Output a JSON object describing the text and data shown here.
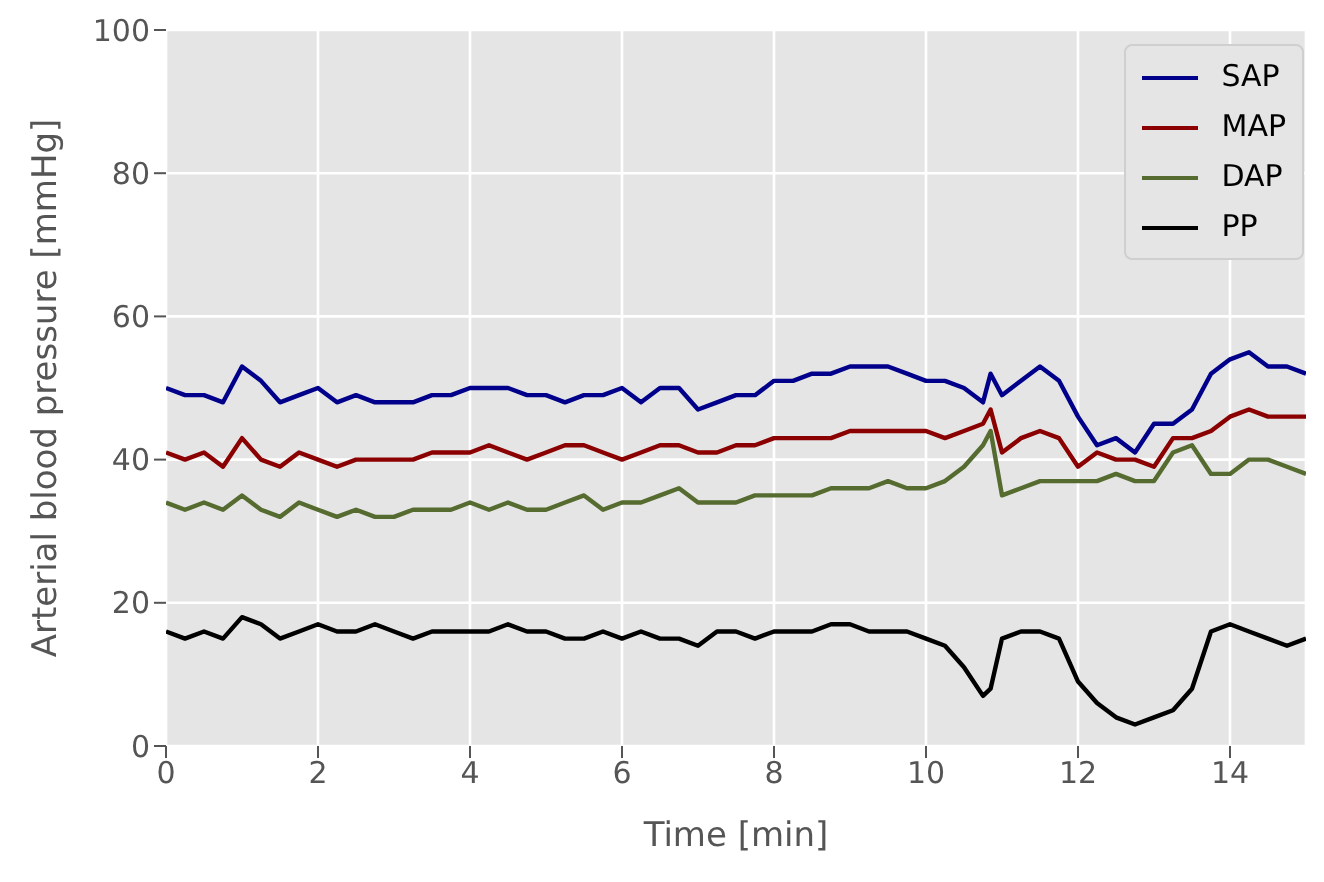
{
  "chart_data": {
    "type": "line",
    "xlabel": "Time [min]",
    "ylabel": "Arterial blood pressure [mmHg]",
    "x": [
      0,
      0.25,
      0.5,
      0.75,
      1,
      1.25,
      1.5,
      1.75,
      2,
      2.25,
      2.5,
      2.75,
      3,
      3.25,
      3.5,
      3.75,
      4,
      4.25,
      4.5,
      4.75,
      5,
      5.25,
      5.5,
      5.75,
      6,
      6.25,
      6.5,
      6.75,
      7,
      7.25,
      7.5,
      7.75,
      8,
      8.25,
      8.5,
      8.75,
      9,
      9.25,
      9.5,
      9.75,
      10,
      10.25,
      10.5,
      10.75,
      10.85,
      11,
      11.25,
      11.5,
      11.75,
      12,
      12.25,
      12.5,
      12.75,
      13,
      13.25,
      13.5,
      13.75,
      14,
      14.25,
      14.5,
      14.75,
      15
    ],
    "series": [
      {
        "name": "SAP",
        "color": "#00008b",
        "values": [
          50,
          49,
          49,
          48,
          53,
          51,
          48,
          49,
          50,
          48,
          49,
          48,
          48,
          48,
          49,
          49,
          50,
          50,
          50,
          49,
          49,
          48,
          49,
          49,
          50,
          48,
          50,
          50,
          47,
          48,
          49,
          49,
          51,
          51,
          52,
          52,
          53,
          53,
          53,
          52,
          51,
          51,
          50,
          48,
          52,
          49,
          51,
          53,
          51,
          46,
          42,
          43,
          41,
          45,
          45,
          47,
          52,
          54,
          55,
          53,
          53,
          52
        ]
      },
      {
        "name": "MAP",
        "color": "#8b0000",
        "values": [
          41,
          40,
          41,
          39,
          43,
          40,
          39,
          41,
          40,
          39,
          40,
          40,
          40,
          40,
          41,
          41,
          41,
          42,
          41,
          40,
          41,
          42,
          42,
          41,
          40,
          41,
          42,
          42,
          41,
          41,
          42,
          42,
          43,
          43,
          43,
          43,
          44,
          44,
          44,
          44,
          44,
          43,
          44,
          45,
          47,
          41,
          43,
          44,
          43,
          39,
          41,
          40,
          40,
          39,
          43,
          43,
          44,
          46,
          47,
          46,
          46,
          46
        ]
      },
      {
        "name": "DAP",
        "color": "#556b2f",
        "values": [
          34,
          33,
          34,
          33,
          35,
          33,
          32,
          34,
          33,
          32,
          33,
          32,
          32,
          33,
          33,
          33,
          34,
          33,
          34,
          33,
          33,
          34,
          35,
          33,
          34,
          34,
          35,
          36,
          34,
          34,
          34,
          35,
          35,
          35,
          35,
          36,
          36,
          36,
          37,
          36,
          36,
          37,
          39,
          42,
          44,
          35,
          36,
          37,
          37,
          37,
          37,
          38,
          37,
          37,
          41,
          42,
          38,
          38,
          40,
          40,
          39,
          38
        ]
      },
      {
        "name": "PP",
        "color": "#000000",
        "values": [
          16,
          15,
          16,
          15,
          18,
          17,
          15,
          16,
          17,
          16,
          16,
          17,
          16,
          15,
          16,
          16,
          16,
          16,
          17,
          16,
          16,
          15,
          15,
          16,
          15,
          16,
          15,
          15,
          14,
          16,
          16,
          15,
          16,
          16,
          16,
          17,
          17,
          16,
          16,
          16,
          15,
          14,
          11,
          7,
          8,
          15,
          16,
          16,
          15,
          9,
          6,
          4,
          3,
          4,
          5,
          8,
          16,
          17,
          16,
          15,
          14,
          15
        ]
      }
    ],
    "xlim": [
      0,
      15
    ],
    "xticks": [
      0,
      2,
      4,
      6,
      8,
      10,
      12,
      14
    ],
    "ylim": [
      0,
      100
    ],
    "yticks": [
      0,
      20,
      40,
      60,
      80,
      100
    ],
    "grid": true,
    "legend": "top right"
  }
}
